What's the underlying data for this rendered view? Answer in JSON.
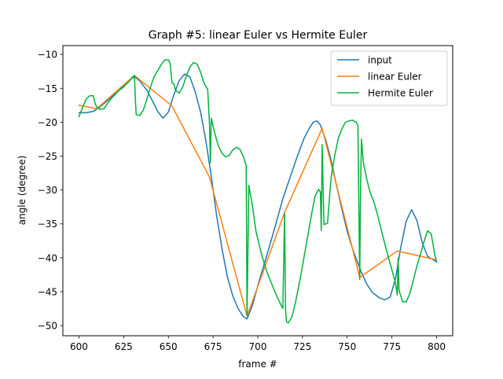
{
  "chart_data": {
    "type": "line",
    "title": "Graph #5: linear Euler vs Hermite Euler",
    "xlabel": "frame #",
    "ylabel": "angle (degree)",
    "xlim": [
      591,
      809
    ],
    "ylim": [
      -51.5,
      -8.7
    ],
    "xticks": [
      600,
      625,
      650,
      675,
      700,
      725,
      750,
      775,
      800
    ],
    "yticks": [
      -10,
      -15,
      -20,
      -25,
      -30,
      -35,
      -40,
      -45,
      -50
    ],
    "xtick_labels": [
      "600",
      "625",
      "650",
      "675",
      "700",
      "725",
      "750",
      "775",
      "800"
    ],
    "ytick_labels": [
      "−10",
      "−15",
      "−20",
      "−25",
      "−30",
      "−35",
      "−40",
      "−45",
      "−50"
    ],
    "grid": false,
    "legend_position": "top-right",
    "series": [
      {
        "name": "input",
        "color": "#1f77b4",
        "x": [
          600,
          604,
          608,
          612,
          616,
          620,
          625,
          629,
          631,
          634,
          638,
          641,
          644,
          647,
          650,
          653,
          656,
          659,
          662,
          665,
          668,
          671,
          674,
          677,
          680,
          683,
          686,
          689,
          692,
          694,
          697,
          701,
          706,
          710,
          714,
          718,
          722,
          726,
          729,
          731,
          733,
          735,
          738,
          741,
          744,
          747,
          750,
          753,
          756,
          758,
          761,
          764,
          768,
          771,
          774,
          777,
          780,
          783,
          786,
          789,
          792,
          795,
          800
        ],
        "y": [
          -18.6,
          -18.6,
          -18.4,
          -17.7,
          -16.8,
          -15.8,
          -14.8,
          -13.6,
          -13.3,
          -13.9,
          -15.3,
          -16.8,
          -18.4,
          -19.4,
          -18.5,
          -16.0,
          -13.9,
          -12.9,
          -13.3,
          -15.5,
          -18.5,
          -22.8,
          -28.0,
          -33.8,
          -38.7,
          -42.8,
          -45.6,
          -47.5,
          -48.7,
          -49.0,
          -47.0,
          -43.2,
          -38.8,
          -35.1,
          -31.3,
          -28.2,
          -25.1,
          -22.3,
          -20.8,
          -20.0,
          -19.8,
          -20.4,
          -22.6,
          -25.6,
          -29.3,
          -32.8,
          -36.1,
          -38.7,
          -40.8,
          -42.2,
          -43.9,
          -45.1,
          -45.9,
          -46.2,
          -45.8,
          -43.1,
          -38.4,
          -34.6,
          -32.9,
          -34.5,
          -37.8,
          -39.8,
          -40.6
        ]
      },
      {
        "name": "linear Euler",
        "color": "#ff7f0e",
        "x": [
          600,
          610,
          631,
          652,
          673,
          694,
          715,
          736,
          757,
          778,
          800
        ],
        "y": [
          -17.5,
          -18.0,
          -13.1,
          -17.6,
          -28.1,
          -48.6,
          -33.3,
          -20.9,
          -42.9,
          -39.0,
          -40.3
        ]
      },
      {
        "name": "Hermite Euler",
        "color": "#00b23a",
        "x": [
          600,
          602,
          604,
          606,
          608,
          609,
          610,
          612,
          614,
          616,
          618,
          620,
          622,
          624,
          626,
          628,
          630,
          631,
          631.5,
          632,
          634,
          636,
          638,
          640,
          642,
          644,
          646,
          648,
          650,
          651,
          652,
          653,
          654,
          656,
          658,
          660,
          662,
          664,
          666,
          668,
          670,
          672,
          673,
          673.5,
          674,
          676,
          678,
          680,
          682,
          684,
          686,
          688,
          690,
          692,
          693.5,
          694,
          695,
          697,
          699,
          702,
          705,
          708,
          711,
          714,
          715,
          715.5,
          716,
          717,
          719,
          721,
          724,
          727,
          730,
          732,
          734,
          735,
          735.5,
          736,
          737,
          739,
          741,
          743,
          745,
          747,
          749,
          751,
          753,
          755,
          756,
          757,
          757.5,
          758,
          759,
          761,
          763,
          765,
          767,
          769,
          771,
          773,
          775,
          777,
          778,
          778.5,
          779,
          781,
          783,
          785,
          787,
          789,
          791,
          793,
          795,
          797,
          799,
          800
        ],
        "y": [
          -19.2,
          -17.8,
          -16.6,
          -16.1,
          -16.1,
          -17.2,
          -17.8,
          -18.1,
          -18.0,
          -17.2,
          -16.5,
          -16.0,
          -15.4,
          -14.9,
          -14.5,
          -14.0,
          -13.3,
          -13.1,
          -16.3,
          -18.9,
          -19.0,
          -18.2,
          -16.6,
          -14.8,
          -13.3,
          -12.4,
          -11.5,
          -10.8,
          -10.8,
          -11.3,
          -14.2,
          -14.3,
          -15.3,
          -15.7,
          -14.8,
          -13.2,
          -11.9,
          -11.2,
          -11.4,
          -12.6,
          -14.3,
          -15.2,
          -20.3,
          -26.0,
          -19.4,
          -21.7,
          -23.5,
          -24.6,
          -25.1,
          -24.9,
          -24.1,
          -23.7,
          -24.0,
          -25.1,
          -26.4,
          -48.5,
          -29.3,
          -32.3,
          -36.1,
          -39.4,
          -42.0,
          -44.0,
          -45.9,
          -47.5,
          -33.5,
          -47.5,
          -49.4,
          -49.6,
          -48.8,
          -46.7,
          -42.7,
          -38.2,
          -33.7,
          -30.9,
          -29.9,
          -30.3,
          -36.0,
          -23.3,
          -35.1,
          -34.9,
          -28.1,
          -25.0,
          -22.4,
          -21.0,
          -20.0,
          -19.8,
          -19.7,
          -20.0,
          -20.5,
          -43.2,
          -29.0,
          -22.5,
          -25.9,
          -28.5,
          -30.5,
          -31.8,
          -33.7,
          -35.8,
          -37.9,
          -39.9,
          -41.8,
          -43.7,
          -45.5,
          -40.0,
          -44.8,
          -46.5,
          -46.5,
          -45.3,
          -43.3,
          -41.2,
          -39.4,
          -37.6,
          -36.0,
          -36.5,
          -39.6,
          -40.6
        ]
      }
    ]
  }
}
